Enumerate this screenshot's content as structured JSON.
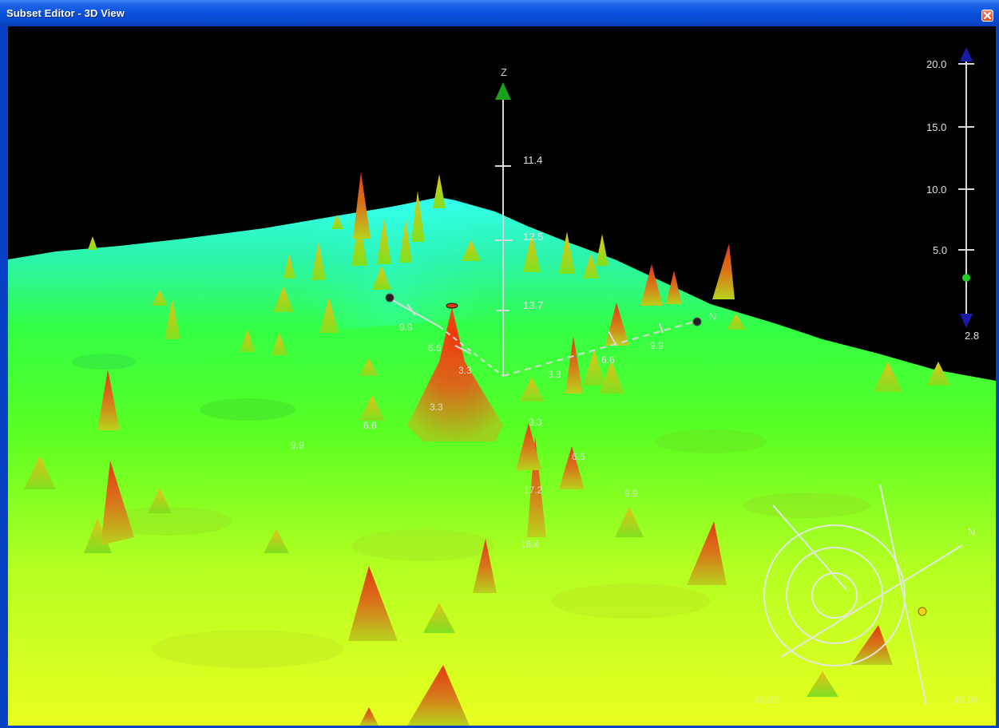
{
  "window": {
    "title": "Subset Editor - 3D View"
  },
  "axis": {
    "z_label": "Z",
    "z_ticks": [
      "11.4",
      "12.5",
      "13.7"
    ],
    "north_label": "N",
    "grid_labels": [
      "9.9",
      "6.6",
      "3.3",
      "3.3",
      "6.6",
      "9.9",
      "3.3",
      "6.6",
      "9.9",
      "3.3",
      "6.6",
      "17.2",
      "9.9",
      "16.4"
    ]
  },
  "depth_scale": {
    "ticks": [
      "20.0",
      "15.0",
      "10.0",
      "5.0"
    ],
    "min_label": "2.8"
  },
  "compass": {
    "north_label": "N",
    "left_label": "45.00",
    "right_label": "45.00"
  },
  "colors": {
    "surface_low": "#33ffee",
    "surface_mid": "#33ff22",
    "surface_high": "#d8ff22",
    "peak": "#e24a1a",
    "title_bar": "#0a52de"
  }
}
